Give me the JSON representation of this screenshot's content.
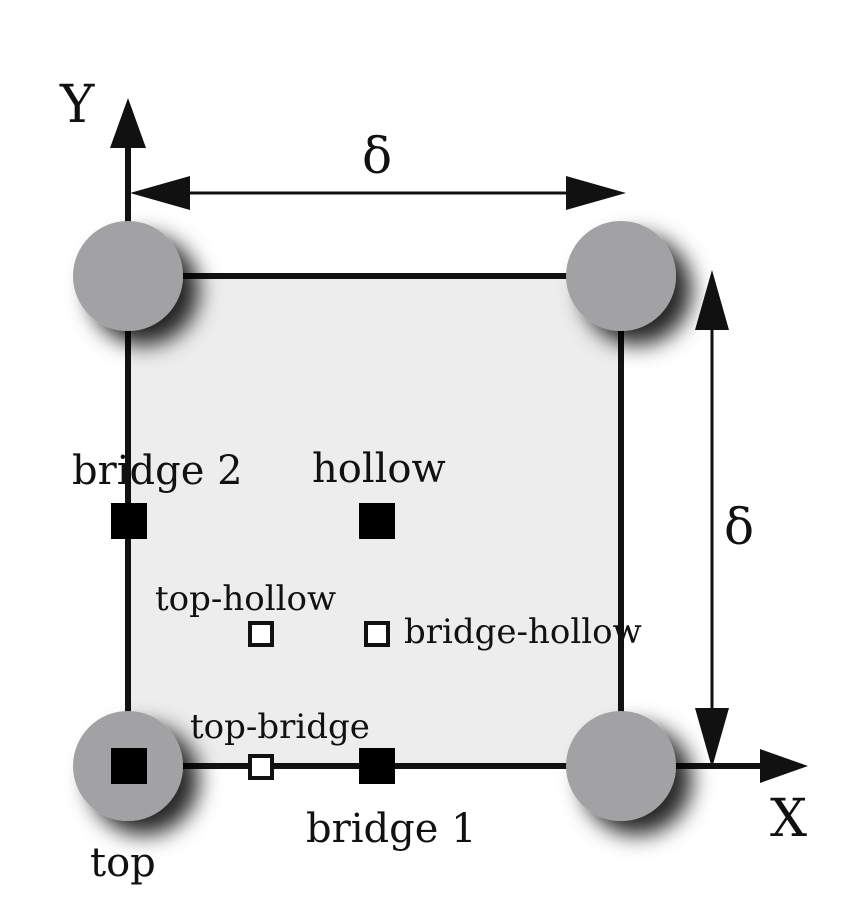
{
  "colors": {
    "cell_fill": "#ededed",
    "atom_fill": "#a2a2a4",
    "filled_site": "#000000",
    "open_site": "#ffffff",
    "line": "#111111"
  },
  "axes": {
    "x_label": "X",
    "y_label": "Y"
  },
  "lattice_parameter_labels": {
    "horizontal": "δ",
    "vertical": "δ"
  },
  "sites": {
    "top": "top",
    "bridge_1": "bridge 1",
    "bridge_2": "bridge 2",
    "hollow": "hollow",
    "top_hollow": "top-hollow",
    "bridge_hollow": "bridge-hollow",
    "top_bridge": "top-bridge"
  }
}
